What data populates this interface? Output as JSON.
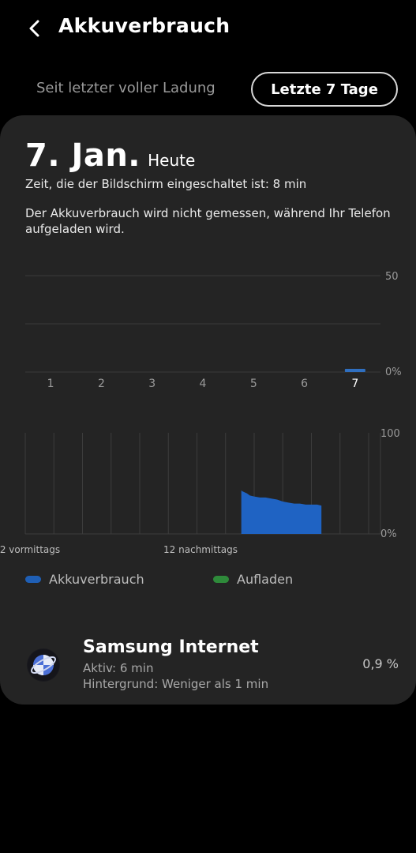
{
  "header": {
    "title": "Akkuverbrauch",
    "back_icon": "chevron-left-icon"
  },
  "range": {
    "inactive_label": "Seit letzter voller Ladung",
    "active_label": "Letzte 7 Tage"
  },
  "day": {
    "date": "7. Jan.",
    "today": "Heute",
    "screen_time": "Zeit, die der Bildschirm eingeschaltet ist: 8 min",
    "notice": "Der Akkuverbrauch wird nicht gemessen, während Ihr Telefon aufgeladen wird."
  },
  "chart_data": [
    {
      "type": "bar",
      "categories": [
        "1",
        "2",
        "3",
        "4",
        "5",
        "6",
        "7"
      ],
      "values": [
        0,
        0,
        0,
        0,
        0,
        0,
        0.9
      ],
      "ytick_labels": [
        "50",
        "0%"
      ],
      "ylim": [
        0,
        100
      ],
      "grid": true,
      "color": "#2f6fc0"
    },
    {
      "type": "area",
      "xtick_labels": [
        "2 vormittags",
        "12 nachmittags"
      ],
      "ytick_labels": [
        "100",
        "0%"
      ],
      "ylim": [
        0,
        100
      ],
      "grid": true,
      "series": [
        {
          "name": "Akkuverbrauch",
          "color": "#1f63c3",
          "x": [
            15.1,
            15.2,
            15.35,
            15.5,
            15.7,
            16.0,
            16.4,
            16.8,
            17.2,
            17.6,
            18.0,
            18.4,
            18.8,
            19.2,
            19.6,
            20.0,
            20.4,
            20.7
          ],
          "y": [
            43,
            42,
            41,
            40,
            38,
            37,
            36,
            36,
            35,
            34,
            32,
            31,
            30,
            30,
            29,
            29,
            29,
            28
          ]
        }
      ]
    }
  ],
  "legend": [
    {
      "label": "Akkuverbrauch",
      "color": "#1f5fb5"
    },
    {
      "label": "Aufladen",
      "color": "#2e8a3a"
    }
  ],
  "app_row": {
    "name": "Samsung Internet",
    "active": "Aktiv: 6 min",
    "background": "Hintergrund: Weniger als 1 min",
    "percent": "0,9 %",
    "icon": "samsung-internet-icon"
  }
}
